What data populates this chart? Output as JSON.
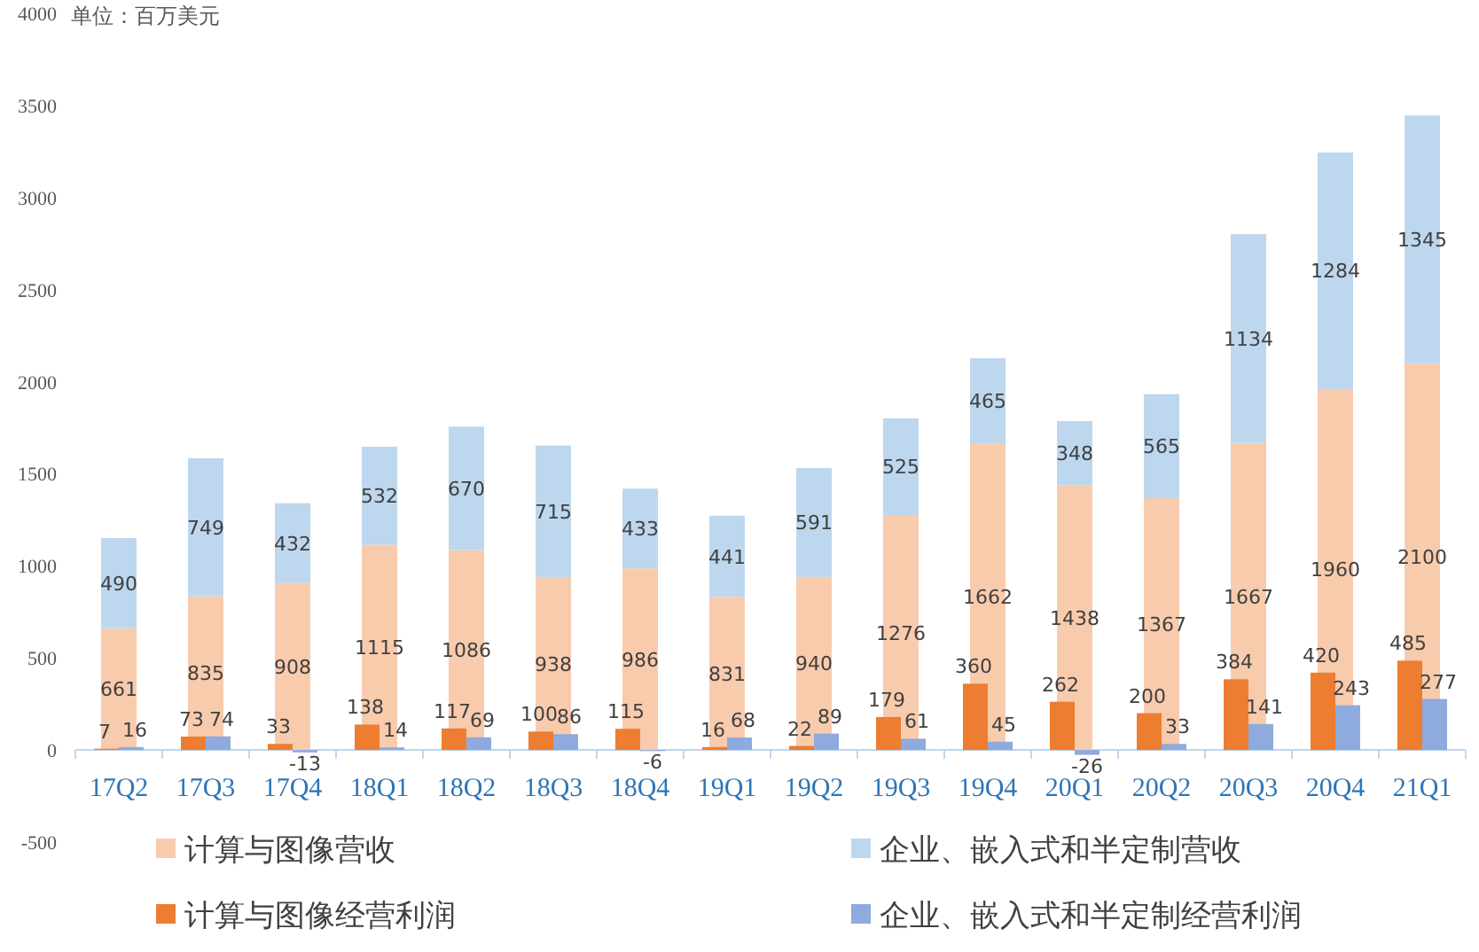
{
  "chart_data": [
    {
      "type": "bar",
      "stacked": true,
      "data_labels": true,
      "legend": "bottom",
      "annotations": [
        "单位：百万美元"
      ],
      "categories": [
        "17Q2",
        "17Q3",
        "17Q4",
        "18Q1",
        "18Q2",
        "18Q3",
        "18Q4",
        "19Q1",
        "19Q2",
        "19Q3",
        "19Q4",
        "20Q1",
        "20Q2",
        "20Q3",
        "20Q4",
        "21Q1"
      ],
      "ylim": [
        -500,
        4000
      ],
      "yticks": [
        -500,
        0,
        500,
        1000,
        1500,
        2000,
        2500,
        3000,
        3500,
        4000
      ],
      "series": [
        {
          "name": "计算与图像营收",
          "color": "#f8cbad",
          "values": [
            661,
            835,
            908,
            1115,
            1086,
            938,
            986,
            831,
            940,
            1276,
            1662,
            1438,
            1367,
            1667,
            1960,
            2100
          ]
        },
        {
          "name": "企业、嵌入式和半定制营收",
          "color": "#bdd7ee",
          "values": [
            490,
            749,
            432,
            532,
            670,
            715,
            433,
            441,
            591,
            525,
            465,
            348,
            565,
            1134,
            1284,
            1345
          ]
        }
      ]
    },
    {
      "type": "bar",
      "data_labels": true,
      "legend": "bottom",
      "tick_labels": false,
      "categories": [
        null,
        null,
        null,
        null,
        null,
        null,
        null,
        null,
        null,
        null,
        null,
        null,
        null,
        null,
        null,
        null
      ],
      "ylim": [
        -500,
        4000
      ],
      "series": [
        {
          "name": "计算与图像经营利润",
          "color": "#ed7d31",
          "values": [
            7,
            73,
            33,
            138,
            117,
            100,
            115,
            16,
            22,
            179,
            360,
            262,
            200,
            384,
            420,
            485
          ]
        },
        {
          "name": "企业、嵌入式和半定制经营利润",
          "color": "#8faadc",
          "values": [
            16,
            74,
            -13,
            14,
            69,
            86,
            -6,
            68,
            89,
            61,
            45,
            -26,
            33,
            141,
            243,
            277
          ]
        }
      ]
    }
  ]
}
